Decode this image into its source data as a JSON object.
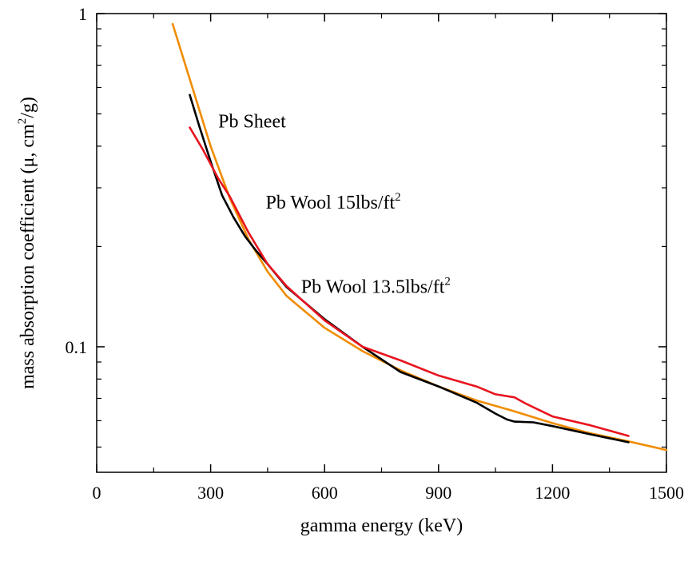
{
  "chart_data": {
    "type": "line",
    "title": "",
    "xlabel": "gamma energy (keV)",
    "ylabel": {
      "prefix": "mass absorption coefficient (μ, cm",
      "sup": "2",
      "suffix": "/g)"
    },
    "xlim": [
      0,
      1500
    ],
    "ylim": [
      0.042,
      1
    ],
    "yscale": "log",
    "grid": false,
    "legend": "none",
    "x_ticks": [
      {
        "value": 0,
        "label": "0"
      },
      {
        "value": 300,
        "label": "300"
      },
      {
        "value": 600,
        "label": "600"
      },
      {
        "value": 900,
        "label": "900"
      },
      {
        "value": 1200,
        "label": "1200"
      },
      {
        "value": 1500,
        "label": "1500"
      }
    ],
    "y_ticks": [
      {
        "value": 0.1,
        "label": "0.1"
      },
      {
        "value": 1,
        "label": "1"
      }
    ],
    "series": [
      {
        "name": {
          "base": "Pb Sheet",
          "sup": ""
        },
        "color": "#f08c00",
        "label_at": [
          320,
          0.455
        ],
        "x": [
          200,
          250,
          300,
          350,
          400,
          450,
          500,
          600,
          700,
          800,
          900,
          1000,
          1100,
          1200,
          1300,
          1400,
          1500
        ],
        "y": [
          0.93,
          0.61,
          0.4,
          0.28,
          0.21,
          0.168,
          0.142,
          0.114,
          0.097,
          0.085,
          0.076,
          0.069,
          0.064,
          0.059,
          0.055,
          0.052,
          0.049
        ]
      },
      {
        "name": {
          "base": "Pb Wool 15lbs/ft",
          "sup": "2"
        },
        "color": "#000000",
        "label_at": [
          445,
          0.26
        ],
        "x": [
          245,
          270,
          300,
          330,
          360,
          390,
          420,
          450,
          500,
          600,
          700,
          800,
          900,
          1000,
          1050,
          1080,
          1100,
          1150,
          1200,
          1300,
          1400
        ],
        "y": [
          0.57,
          0.46,
          0.36,
          0.285,
          0.245,
          0.215,
          0.194,
          0.177,
          0.151,
          0.121,
          0.1,
          0.084,
          0.076,
          0.068,
          0.063,
          0.0605,
          0.0596,
          0.0593,
          0.0578,
          0.0546,
          0.0517
        ]
      },
      {
        "name": {
          "base": "Pb Wool 13.5lbs/ft",
          "sup": "2"
        },
        "color": "#e8141e",
        "label_at": [
          538,
          0.145
        ],
        "x": [
          245,
          280,
          320,
          350,
          400,
          450,
          500,
          600,
          700,
          800,
          900,
          1000,
          1050,
          1100,
          1130,
          1200,
          1300,
          1400
        ],
        "y": [
          0.455,
          0.39,
          0.32,
          0.283,
          0.22,
          0.177,
          0.152,
          0.12,
          0.1,
          0.091,
          0.082,
          0.076,
          0.072,
          0.0705,
          0.0675,
          0.0618,
          0.0581,
          0.054
        ]
      }
    ]
  }
}
